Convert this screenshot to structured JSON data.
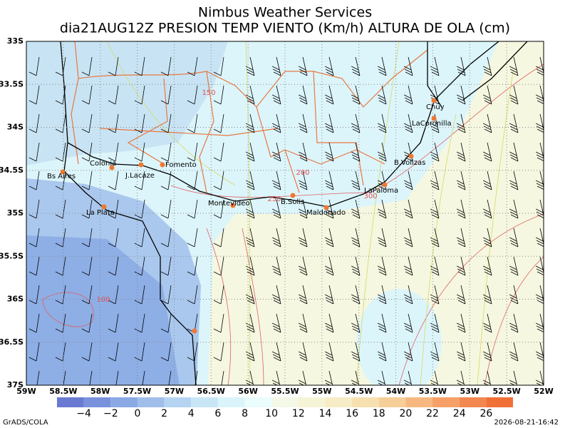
{
  "header": {
    "title": "Nimbus Weather Services",
    "subtitle": "dia21AUG12Z PRESION TEMP VIENTO (Km/h) ALTURA DE OLA (cm)"
  },
  "map": {
    "lat_labels": [
      "33S",
      "33.5S",
      "34S",
      "34.5S",
      "35S",
      "35.5S",
      "36S",
      "36.5S",
      "37S"
    ],
    "lon_labels": [
      "59W",
      "58.5W",
      "58W",
      "57.5W",
      "57W",
      "56.5W",
      "56W",
      "55.5W",
      "55W",
      "54.5W",
      "54W",
      "53.5W",
      "53W",
      "52.5W",
      "52W"
    ],
    "places": [
      "Bs Aires",
      "Colonia",
      "J.Lacaze",
      "Fomento",
      "La Plata",
      "Montevideo",
      "B.Solis",
      "Maldonado",
      "LaPaloma",
      "B.Volizas",
      "LaCoronilla",
      "Chuy"
    ],
    "contour_labels": [
      "150",
      "200",
      "250",
      "300",
      "100"
    ]
  },
  "colorbar": {
    "labels": [
      "−4",
      "−2",
      "0",
      "2",
      "4",
      "6",
      "8",
      "10",
      "12",
      "14",
      "16",
      "18",
      "20",
      "22",
      "24",
      "26"
    ]
  },
  "footer": {
    "left": "GrADS/COLA",
    "right": "2026-08-21-16:42"
  }
}
